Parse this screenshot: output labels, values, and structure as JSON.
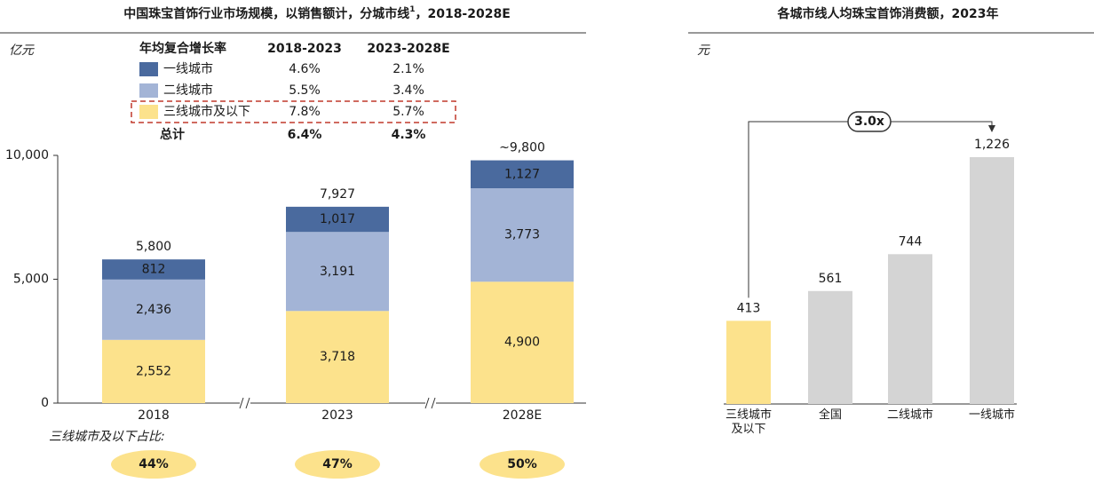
{
  "chart_data": [
    {
      "type": "stacked-bar",
      "title": [
        "中国珠宝首饰行业市场规模，以销售额计，分城市线",
        "1",
        "，2018-2028E"
      ],
      "unit": "亿元",
      "categories": [
        "2018",
        "2023",
        "2028E"
      ],
      "series": [
        {
          "name": "三线城市及以下",
          "color": "#fce28c",
          "label_color": "#ffffff",
          "values": [
            2552,
            3718,
            4900
          ],
          "value_labels": [
            "2,552",
            "3,718",
            "4,900"
          ],
          "cagr": [
            "7.8%",
            "5.7%"
          ]
        },
        {
          "name": "二线城市",
          "color": "#a3b4d6",
          "label_color": "#1a1a1a",
          "values": [
            2436,
            3191,
            3773
          ],
          "value_labels": [
            "2,436",
            "3,191",
            "3,773"
          ],
          "cagr": [
            "5.5%",
            "3.4%"
          ]
        },
        {
          "name": "一线城市",
          "color": "#4a6a9e",
          "label_color": "#ffffff",
          "values": [
            812,
            1017,
            1127
          ],
          "value_labels": [
            "812",
            "1,017",
            "1,127"
          ],
          "cagr": [
            "4.6%",
            "2.1%"
          ]
        }
      ],
      "totals": {
        "values": [
          5800,
          7927,
          9800
        ],
        "value_labels": [
          "5,800",
          "7,927",
          "~9,800"
        ]
      },
      "ylim": [
        0,
        10000
      ],
      "yticks": [
        0,
        {
          "value": 5000,
          "label": "5,000"
        },
        {
          "value": 10000,
          "label": "10,000"
        }
      ],
      "cagr_table": {
        "header": [
          "年均复合增长率",
          "2018-2023",
          "2023-2028E"
        ],
        "total_name": "总计",
        "total": [
          "6.4%",
          "4.3%"
        ]
      },
      "share": {
        "label": "三线城市及以下占比:",
        "values": [
          44,
          47,
          50
        ],
        "value_labels": [
          "44%",
          "47%",
          "50%"
        ],
        "color": "#fce28c"
      }
    },
    {
      "type": "bar",
      "title": "各城市线人均珠宝首饰消费额，2023年",
      "unit": "元",
      "categories": [
        "三线城市及以下",
        "全国",
        "二线城市",
        "一线城市"
      ],
      "values": [
        413,
        561,
        744,
        1226
      ],
      "value_labels": [
        "413",
        "561",
        "744",
        "1,226"
      ],
      "colors": [
        "#fce28c",
        "#d4d4d4",
        "#d4d4d4",
        "#d4d4d4"
      ],
      "ylim": [
        0,
        1400
      ],
      "annotation": "3.0x"
    }
  ]
}
